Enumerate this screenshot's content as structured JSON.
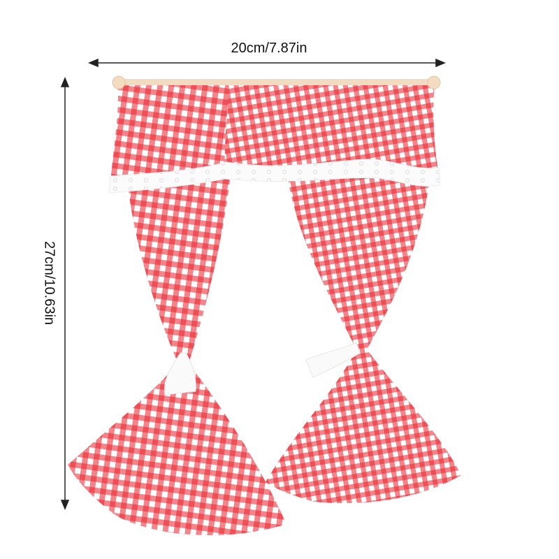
{
  "dimensions": {
    "width_label": "20cm/7.87in",
    "height_label": "27cm/10.63in"
  },
  "product": {
    "subject": "gingham curtains with valance and tiebacks",
    "colors": {
      "check": "#e8202a",
      "base": "#ffffff",
      "rod": "#f3dcc0"
    }
  }
}
